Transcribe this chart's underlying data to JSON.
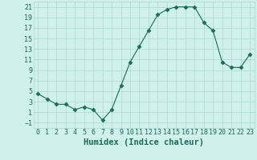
{
  "xlabel": "Humidex (Indice chaleur)",
  "x": [
    0,
    1,
    2,
    3,
    4,
    5,
    6,
    7,
    8,
    9,
    10,
    11,
    12,
    13,
    14,
    15,
    16,
    17,
    18,
    19,
    20,
    21,
    22,
    23
  ],
  "y": [
    4.5,
    3.5,
    2.5,
    2.5,
    1.5,
    2.0,
    1.5,
    -0.5,
    1.5,
    6.0,
    10.5,
    13.5,
    16.5,
    19.5,
    20.5,
    21.0,
    21.0,
    21.0,
    18.0,
    16.5,
    10.5,
    9.5,
    9.5,
    12.0
  ],
  "line_color": "#1a6b5a",
  "marker": "D",
  "marker_size": 2.5,
  "bg_color": "#cff0eb",
  "grid_color": "#aad8d3",
  "ylim": [
    -2,
    22
  ],
  "xlim": [
    -0.5,
    23.5
  ],
  "yticks": [
    -1,
    1,
    3,
    5,
    7,
    9,
    11,
    13,
    15,
    17,
    19,
    21
  ],
  "xticks": [
    0,
    1,
    2,
    3,
    4,
    5,
    6,
    7,
    8,
    9,
    10,
    11,
    12,
    13,
    14,
    15,
    16,
    17,
    18,
    19,
    20,
    21,
    22,
    23
  ],
  "tick_fontsize": 6.0,
  "xlabel_fontsize": 7.5,
  "tick_color": "#1a6b5a",
  "label_color": "#1a6b5a"
}
